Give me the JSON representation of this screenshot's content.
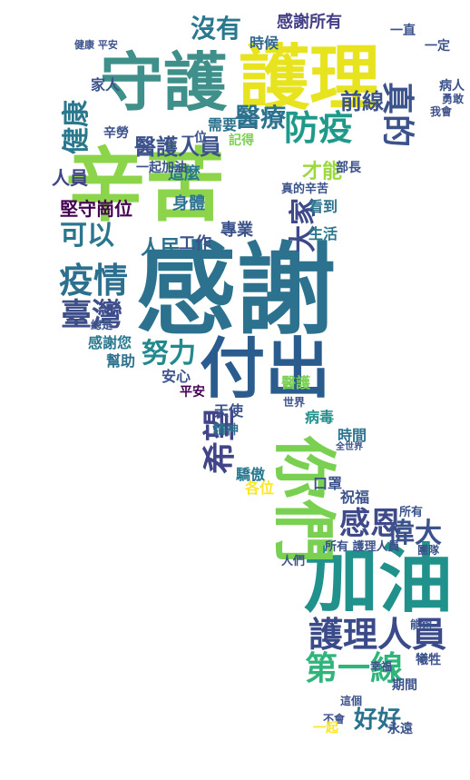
{
  "words": [
    {
      "text": "辛苦",
      "color": "#8cd44a"
    },
    {
      "text": "感謝",
      "color": "#2c728e"
    },
    {
      "text": "護理",
      "color": "#e7e41f"
    },
    {
      "text": "守護",
      "color": "#3f8f8a"
    },
    {
      "text": "付出",
      "color": "#2a5c8e"
    },
    {
      "text": "加油",
      "color": "#21918c"
    },
    {
      "text": "你們",
      "color": "#7ad151"
    },
    {
      "text": "護理人員",
      "color": "#3b4b8a"
    },
    {
      "text": "第一線",
      "color": "#2fb47c"
    },
    {
      "text": "疫情",
      "color": "#2d6f8e"
    },
    {
      "text": "臺灣",
      "color": "#3d4e8a"
    },
    {
      "text": "感恩",
      "color": "#3e4a89"
    },
    {
      "text": "防疫",
      "color": "#1f9a8a"
    },
    {
      "text": "醫療",
      "color": "#2c728e"
    },
    {
      "text": "真的",
      "color": "#3b528b"
    },
    {
      "text": "健康",
      "color": "#2a788e"
    },
    {
      "text": "大家",
      "color": "#3e4989"
    },
    {
      "text": "努力",
      "color": "#23898e"
    },
    {
      "text": "可以",
      "color": "#2a768e"
    },
    {
      "text": "希望",
      "color": "#414487"
    },
    {
      "text": "偉大",
      "color": "#3b528b"
    },
    {
      "text": "好好",
      "color": "#2c728e"
    },
    {
      "text": "沒有",
      "color": "#2a788e"
    },
    {
      "text": "醫護人員",
      "color": "#3b528b"
    },
    {
      "text": "人民",
      "color": "#2c728e"
    },
    {
      "text": "前線",
      "color": "#3b528b"
    },
    {
      "text": "才能",
      "color": "#9bd93c"
    },
    {
      "text": "堅守崗位",
      "color": "#440154"
    },
    {
      "text": "人員",
      "color": "#414487"
    },
    {
      "text": "感謝所有",
      "color": "#433e85"
    },
    {
      "text": "時候",
      "color": "#31668e"
    },
    {
      "text": "這麼",
      "color": "#2a788e"
    },
    {
      "text": "身體",
      "color": "#2c728e"
    },
    {
      "text": "工作",
      "color": "#3b528b"
    },
    {
      "text": "專業",
      "color": "#3b528b"
    },
    {
      "text": "感謝您",
      "color": "#2a788e"
    },
    {
      "text": "幫助",
      "color": "#2c728e"
    },
    {
      "text": "安心",
      "color": "#3b528b"
    },
    {
      "text": "平安",
      "color": "#440154"
    },
    {
      "text": "天使",
      "color": "#3b528b"
    },
    {
      "text": "精神",
      "color": "#2c728e"
    },
    {
      "text": "驕傲",
      "color": "#2a788e"
    },
    {
      "text": "各位",
      "color": "#fde725"
    },
    {
      "text": "口罩",
      "color": "#3b528b"
    },
    {
      "text": "祝福",
      "color": "#3b528b"
    },
    {
      "text": "時間",
      "color": "#2c728e"
    },
    {
      "text": "病毒",
      "color": "#21918c"
    },
    {
      "text": "生活",
      "color": "#2a788e"
    },
    {
      "text": "看到",
      "color": "#2c728e"
    },
    {
      "text": "家人",
      "color": "#3b528b"
    },
    {
      "text": "辛勞",
      "color": "#3b528b"
    },
    {
      "text": "一起加油",
      "color": "#3b528b"
    },
    {
      "text": "一位",
      "color": "#3b528b"
    },
    {
      "text": "需要",
      "color": "#2c728e"
    },
    {
      "text": "記得",
      "color": "#7ad151"
    },
    {
      "text": "一直",
      "color": "#3b528b"
    },
    {
      "text": "一定",
      "color": "#3b528b"
    },
    {
      "text": "病人",
      "color": "#3b528b"
    },
    {
      "text": "勇敢",
      "color": "#3b528b"
    },
    {
      "text": "我會",
      "color": "#3b528b"
    },
    {
      "text": "部長",
      "color": "#3b528b"
    },
    {
      "text": "真的辛苦",
      "color": "#3b528b"
    },
    {
      "text": "所有",
      "color": "#3b528b"
    },
    {
      "text": "所有 護理人員",
      "color": "#3b528b"
    },
    {
      "text": "團隊",
      "color": "#3b528b"
    },
    {
      "text": "人們",
      "color": "#3b528b"
    },
    {
      "text": "幸福",
      "color": "#3b528b"
    },
    {
      "text": "期間",
      "color": "#3b528b"
    },
    {
      "text": "犧牲",
      "color": "#3b528b"
    },
    {
      "text": "永遠",
      "color": "#3b528b"
    },
    {
      "text": "不會",
      "color": "#3b528b"
    },
    {
      "text": "這個",
      "color": "#3b528b"
    },
    {
      "text": "醫護",
      "color": "#7ad151"
    },
    {
      "text": "世界",
      "color": "#3b528b"
    },
    {
      "text": "總是",
      "color": "#3b528b"
    },
    {
      "text": "全世界",
      "color": "#3b528b"
    },
    {
      "text": "一起",
      "color": "#fde725"
    },
    {
      "text": "能夠",
      "color": "#3b528b"
    },
    {
      "text": "健康 平安",
      "color": "#3b528b"
    }
  ]
}
